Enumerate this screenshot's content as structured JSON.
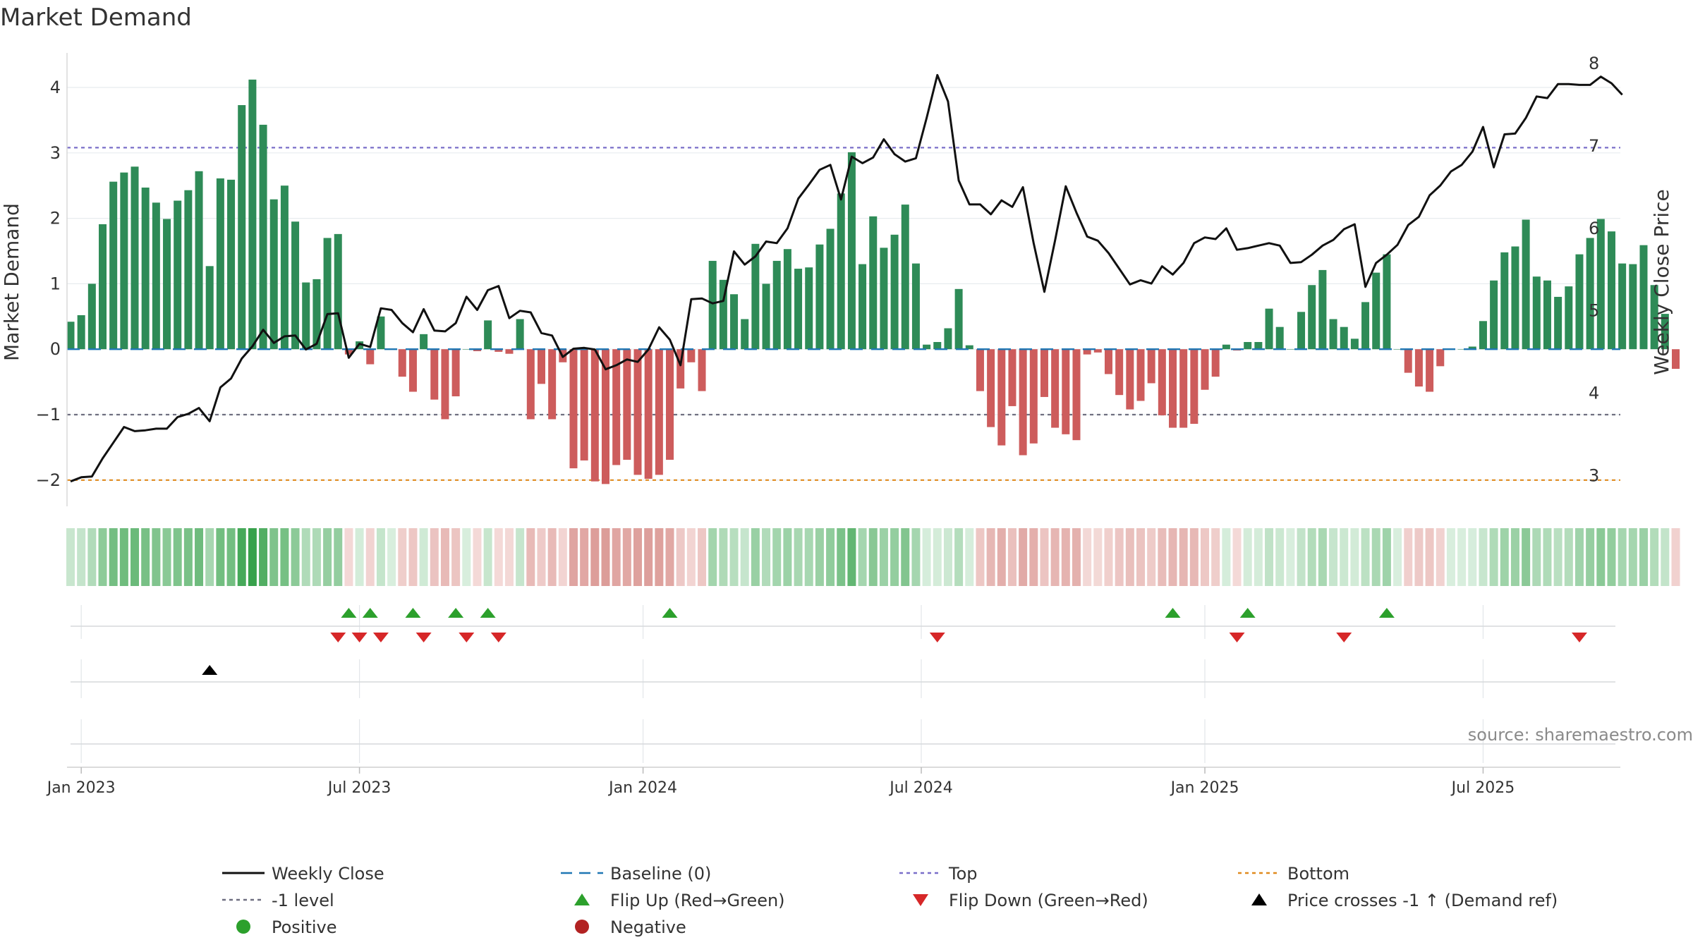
{
  "chart_data": {
    "type": "bar+line",
    "title": "Market Demand",
    "ylabel_left": "Market Demand",
    "ylabel_right": "Weekly Close Price",
    "ylim_left": [
      -2.35,
      4.3
    ],
    "ylim_right": [
      2.7,
      8.3
    ],
    "left_ticks": [
      {
        "v": 4,
        "label": "4"
      },
      {
        "v": 3,
        "label": "3"
      },
      {
        "v": 2,
        "label": "2"
      },
      {
        "v": 1,
        "label": "1"
      },
      {
        "v": 0,
        "label": "0"
      },
      {
        "v": -1,
        "label": "−1"
      },
      {
        "v": -2,
        "label": "−2"
      }
    ],
    "right_ticks": [
      {
        "v": 8,
        "label": "8"
      },
      {
        "v": 7,
        "label": "7"
      },
      {
        "v": 6,
        "label": "6"
      },
      {
        "v": 5,
        "label": "5"
      },
      {
        "v": 4,
        "label": "4"
      },
      {
        "v": 3,
        "label": "3"
      }
    ],
    "x_ticks": [
      {
        "week": 1,
        "label": "Jan 2023"
      },
      {
        "week": 27,
        "label": "Jul 2023"
      },
      {
        "week": 53.5,
        "label": "Jan 2024"
      },
      {
        "week": 79.5,
        "label": "Jul 2024"
      },
      {
        "week": 106,
        "label": "Jan 2025"
      },
      {
        "week": 132,
        "label": "Jul 2025"
      }
    ],
    "reference_lines": [
      {
        "name": "Top",
        "value": 3.08,
        "color": "#7a6fc9"
      },
      {
        "name": "-1 level",
        "value": -1,
        "color": "#6f6f80"
      },
      {
        "name": "Bottom",
        "value": -2,
        "color": "#e08a1e"
      }
    ],
    "demand": [
      0.42,
      0.52,
      1.0,
      1.91,
      2.56,
      2.7,
      2.79,
      2.47,
      2.24,
      1.99,
      2.27,
      2.43,
      2.72,
      1.27,
      2.61,
      2.59,
      3.73,
      4.12,
      3.43,
      2.29,
      2.5,
      1.95,
      1.02,
      1.07,
      1.7,
      1.76,
      -0.08,
      0.12,
      -0.23,
      0.5,
      0.0,
      -0.42,
      -0.65,
      0.23,
      -0.77,
      -1.07,
      -0.72,
      0.0,
      -0.03,
      0.44,
      -0.04,
      -0.07,
      0.46,
      -1.07,
      -0.53,
      -1.07,
      -0.2,
      -1.82,
      -1.7,
      -2.02,
      -2.06,
      -1.77,
      -1.69,
      -1.92,
      -1.98,
      -1.92,
      -1.69,
      -0.6,
      -0.2,
      -0.64,
      1.35,
      1.06,
      0.84,
      0.46,
      1.61,
      1.0,
      1.35,
      1.53,
      1.23,
      1.25,
      1.6,
      1.84,
      2.38,
      3.01,
      1.3,
      2.03,
      1.55,
      1.75,
      2.21,
      1.31,
      0.07,
      0.11,
      0.32,
      0.92,
      0.06,
      -0.64,
      -1.19,
      -1.47,
      -0.87,
      -1.62,
      -1.44,
      -0.73,
      -1.2,
      -1.3,
      -1.39,
      -0.08,
      -0.05,
      -0.38,
      -0.7,
      -0.92,
      -0.79,
      -0.52,
      -1.01,
      -1.2,
      -1.2,
      -1.14,
      -0.62,
      -0.42,
      0.07,
      -0.02,
      0.11,
      0.11,
      0.62,
      0.34,
      0.0,
      0.57,
      0.98,
      1.21,
      0.46,
      0.34,
      0.16,
      0.72,
      1.17,
      1.45,
      0.0,
      -0.36,
      -0.57,
      -0.65,
      -0.26,
      0.0,
      0.0,
      0.04,
      0.43,
      1.05,
      1.48,
      1.57,
      1.98,
      1.11,
      1.05,
      0.8,
      0.96,
      1.45,
      1.7,
      1.99,
      1.8,
      1.31,
      1.3,
      1.59,
      0.98,
      0.54,
      -0.3
    ],
    "weekly_close": [
      2.93,
      2.98,
      2.99,
      3.21,
      3.4,
      3.59,
      3.54,
      3.55,
      3.57,
      3.57,
      3.71,
      3.75,
      3.82,
      3.66,
      4.07,
      4.18,
      4.42,
      4.57,
      4.77,
      4.61,
      4.69,
      4.7,
      4.53,
      4.6,
      4.96,
      4.97,
      4.43,
      4.6,
      4.56,
      5.03,
      5.01,
      4.85,
      4.74,
      5.02,
      4.76,
      4.75,
      4.85,
      5.17,
      5.01,
      5.25,
      5.3,
      4.91,
      5.0,
      4.98,
      4.73,
      4.7,
      4.44,
      4.54,
      4.55,
      4.53,
      4.29,
      4.34,
      4.41,
      4.38,
      4.53,
      4.8,
      4.65,
      4.34,
      5.14,
      5.15,
      5.09,
      5.12,
      5.72,
      5.56,
      5.66,
      5.84,
      5.82,
      6.0,
      6.36,
      6.53,
      6.71,
      6.77,
      6.35,
      6.87,
      6.79,
      6.86,
      7.08,
      6.9,
      6.81,
      6.85,
      7.34,
      7.86,
      7.54,
      6.58,
      6.29,
      6.29,
      6.17,
      6.34,
      6.26,
      6.5,
      5.82,
      5.23,
      5.85,
      6.51,
      6.19,
      5.9,
      5.85,
      5.7,
      5.51,
      5.32,
      5.37,
      5.33,
      5.54,
      5.44,
      5.58,
      5.82,
      5.89,
      5.87,
      6.0,
      5.74,
      5.76,
      5.79,
      5.82,
      5.79,
      5.58,
      5.59,
      5.68,
      5.79,
      5.86,
      5.99,
      6.05,
      5.29,
      5.58,
      5.68,
      5.8,
      6.04,
      6.14,
      6.4,
      6.52,
      6.69,
      6.77,
      6.93,
      7.23,
      6.74,
      7.14,
      7.15,
      7.34,
      7.6,
      7.58,
      7.75,
      7.75,
      7.74,
      7.74,
      7.84,
      7.76,
      7.62
    ],
    "flip_up_weeks": [
      27,
      29,
      33,
      37,
      40,
      57,
      104,
      111,
      124
    ],
    "flip_down_weeks": [
      26,
      28,
      30,
      34,
      38,
      41,
      82,
      110,
      120,
      142
    ],
    "price_cross_weeks": [
      14
    ],
    "source": "source: sharemaestro.com",
    "legend": [
      {
        "label": "Weekly Close",
        "symbol": "solid-line",
        "color": "#111111"
      },
      {
        "label": "Baseline (0)",
        "symbol": "dash-line",
        "color": "#1f77b4"
      },
      {
        "label": "Top",
        "symbol": "dot-line",
        "color": "#7a6fc9"
      },
      {
        "label": "Bottom",
        "symbol": "dot-line",
        "color": "#e08a1e"
      },
      {
        "label": "-1 level",
        "symbol": "dot-line",
        "color": "#6f6f80"
      },
      {
        "label": "Flip Up (Red→Green)",
        "symbol": "triangle-up",
        "color": "#2ca02c"
      },
      {
        "label": "Flip Down (Green→Red)",
        "symbol": "triangle-down",
        "color": "#d62728"
      },
      {
        "label": "Price crosses -1 ↑ (Demand ref)",
        "symbol": "triangle-up",
        "color": "#000000"
      },
      {
        "label": "Positive",
        "symbol": "circle",
        "color": "#2ca02c"
      },
      {
        "label": "Negative",
        "symbol": "circle",
        "color": "#b22222"
      }
    ],
    "colors": {
      "positive_bar": "#2e8b57",
      "negative_bar": "#cd5c5c",
      "baseline": "#1f77b4"
    }
  }
}
